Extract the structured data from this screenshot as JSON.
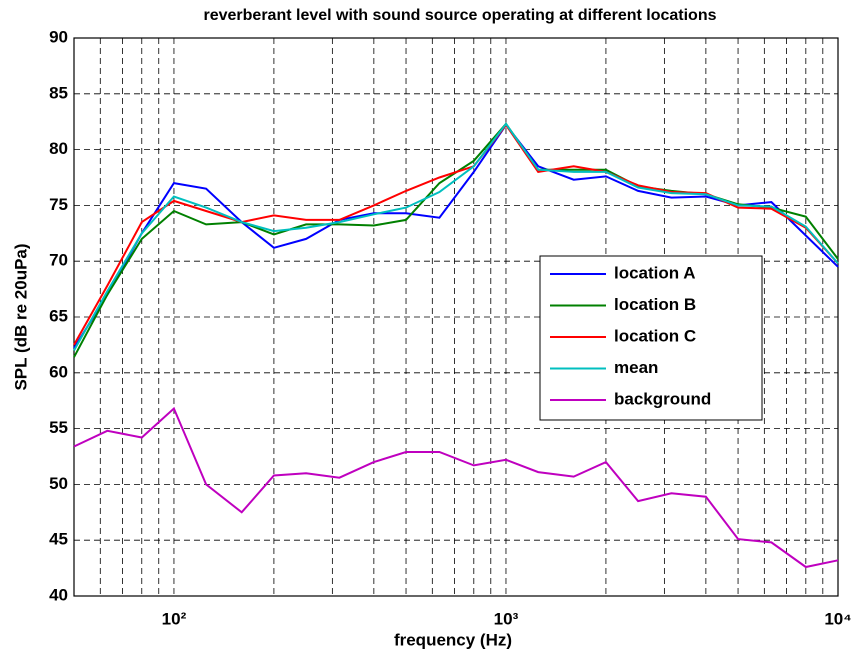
{
  "chart_data": {
    "type": "line",
    "title": "reverberant level with sound source operating at different locations",
    "xlabel": "frequency (Hz)",
    "ylabel": "SPL (dB re 20uPa)",
    "x": [
      50,
      63,
      80,
      100,
      125,
      160,
      200,
      250,
      315,
      400,
      500,
      630,
      800,
      1000,
      1250,
      1600,
      2000,
      2500,
      3150,
      4000,
      5000,
      6300,
      8000,
      10000
    ],
    "series": [
      {
        "name": "location A",
        "color": "#0000ff",
        "values": [
          62.2,
          67,
          72.5,
          77,
          76.5,
          73.5,
          71.2,
          72,
          73.7,
          74.3,
          74.3,
          73.9,
          78,
          82.2,
          78.5,
          77.3,
          77.6,
          76.3,
          75.7,
          75.8,
          75,
          75.3,
          72.3,
          69.5
        ]
      },
      {
        "name": "location B",
        "color": "#008000",
        "values": [
          61.4,
          67,
          72,
          74.5,
          73.3,
          73.5,
          72.4,
          73.3,
          73.3,
          73.2,
          73.7,
          77,
          79,
          82.3,
          78.2,
          78.2,
          78.2,
          76.7,
          76.3,
          76,
          75.1,
          74.8,
          74,
          70.2
        ]
      },
      {
        "name": "location C",
        "color": "#ff0000",
        "values": [
          62.5,
          67.8,
          73.5,
          75.4,
          74.5,
          73.5,
          74.1,
          73.7,
          73.7,
          75,
          76.3,
          77.5,
          78.5,
          82.2,
          78,
          78.5,
          78,
          76.8,
          76.2,
          76.1,
          74.8,
          74.7,
          73,
          69.8
        ]
      },
      {
        "name": "mean",
        "color": "#00bfbf",
        "values": [
          62,
          67.3,
          72.5,
          75.8,
          74.8,
          73.5,
          72.7,
          73,
          73.5,
          74.2,
          74.8,
          76.2,
          78.5,
          82.3,
          78.2,
          78,
          78,
          76.6,
          76.1,
          76,
          75,
          74.9,
          73.1,
          69.8
        ]
      },
      {
        "name": "background",
        "color": "#bf00bf",
        "values": [
          53.4,
          54.8,
          54.2,
          56.8,
          50,
          47.5,
          50.8,
          51,
          50.6,
          52,
          52.9,
          52.9,
          51.7,
          52.2,
          51.1,
          50.7,
          52,
          48.5,
          49.2,
          48.9,
          45.1,
          44.8,
          42.6,
          43.2
        ]
      }
    ],
    "xscale": "log",
    "xlim": [
      50,
      10000
    ],
    "xticks": [
      {
        "value": 100,
        "label": "10²"
      },
      {
        "value": 1000,
        "label": "10³"
      },
      {
        "value": 10000,
        "label": "10⁴"
      }
    ],
    "xminor": [
      60,
      70,
      80,
      90,
      200,
      300,
      400,
      500,
      600,
      700,
      800,
      900,
      2000,
      3000,
      4000,
      5000,
      6000,
      7000,
      8000,
      9000
    ],
    "ylim": [
      40,
      90
    ],
    "yticks": [
      40,
      45,
      50,
      55,
      60,
      65,
      70,
      75,
      80,
      85,
      90
    ],
    "grid": true,
    "legend": "right"
  }
}
